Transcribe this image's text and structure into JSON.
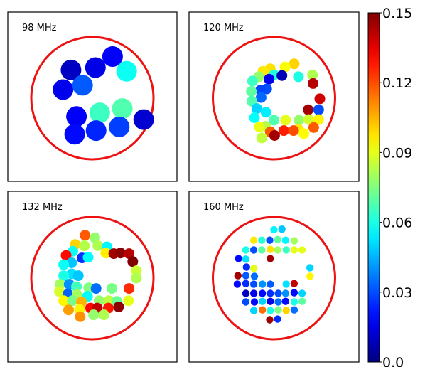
{
  "chart_data": {
    "type": "scatter",
    "colormap": "jet",
    "color_range": [
      0.0,
      0.15
    ],
    "colorbar_ticks": [
      "0.0",
      "0.03",
      "0.06",
      "0.09",
      "0.12",
      "0.15"
    ],
    "ring_color": "#ee1111",
    "panels": [
      {
        "label": "98 MHz",
        "marker": "large",
        "points": [
          {
            "x": -0.35,
            "y": 0.46,
            "v": 0.01
          },
          {
            "x": 0.05,
            "y": 0.5,
            "v": 0.015
          },
          {
            "x": 0.33,
            "y": 0.68,
            "v": 0.018
          },
          {
            "x": 0.56,
            "y": 0.44,
            "v": 0.058
          },
          {
            "x": -0.48,
            "y": 0.14,
            "v": 0.016
          },
          {
            "x": -0.16,
            "y": 0.21,
            "v": 0.032
          },
          {
            "x": -0.26,
            "y": -0.3,
            "v": 0.018
          },
          {
            "x": 0.12,
            "y": -0.24,
            "v": 0.065
          },
          {
            "x": 0.49,
            "y": -0.17,
            "v": 0.068
          },
          {
            "x": 0.84,
            "y": -0.35,
            "v": 0.012
          },
          {
            "x": -0.29,
            "y": -0.59,
            "v": 0.02
          },
          {
            "x": 0.06,
            "y": -0.53,
            "v": 0.024
          },
          {
            "x": 0.44,
            "y": -0.47,
            "v": 0.028
          }
        ]
      },
      {
        "label": "120 MHz",
        "marker": "medium",
        "points": [
          {
            "x": 0.33,
            "y": 0.56,
            "v": 0.1
          },
          {
            "x": 0.18,
            "y": 0.51,
            "v": 0.093
          },
          {
            "x": -0.06,
            "y": 0.48,
            "v": 0.098
          },
          {
            "x": -0.18,
            "y": 0.44,
            "v": 0.097
          },
          {
            "x": 0.0,
            "y": 0.38,
            "v": 0.061
          },
          {
            "x": -0.25,
            "y": 0.35,
            "v": 0.078
          },
          {
            "x": -0.08,
            "y": 0.31,
            "v": 0.016
          },
          {
            "x": 0.13,
            "y": 0.37,
            "v": 0.008
          },
          {
            "x": -0.35,
            "y": 0.28,
            "v": 0.065
          },
          {
            "x": 0.4,
            "y": 0.35,
            "v": 0.06
          },
          {
            "x": 0.63,
            "y": 0.38,
            "v": 0.082
          },
          {
            "x": 0.64,
            "y": 0.24,
            "v": 0.142
          },
          {
            "x": -0.12,
            "y": 0.15,
            "v": 0.03
          },
          {
            "x": -0.22,
            "y": 0.13,
            "v": 0.029
          },
          {
            "x": -0.37,
            "y": 0.11,
            "v": 0.07
          },
          {
            "x": -0.21,
            "y": 0.01,
            "v": 0.034
          },
          {
            "x": -0.36,
            "y": -0.05,
            "v": 0.068
          },
          {
            "x": 0.75,
            "y": -0.01,
            "v": 0.138
          },
          {
            "x": -0.28,
            "y": -0.17,
            "v": 0.05
          },
          {
            "x": -0.13,
            "y": -0.23,
            "v": 0.054
          },
          {
            "x": 0.56,
            "y": -0.19,
            "v": 0.145
          },
          {
            "x": 0.73,
            "y": -0.19,
            "v": 0.03
          },
          {
            "x": -0.32,
            "y": -0.32,
            "v": 0.057
          },
          {
            "x": 0.0,
            "y": -0.36,
            "v": 0.068
          },
          {
            "x": 0.19,
            "y": -0.36,
            "v": 0.09
          },
          {
            "x": 0.41,
            "y": -0.36,
            "v": 0.078
          },
          {
            "x": 0.57,
            "y": -0.35,
            "v": 0.087
          },
          {
            "x": 0.73,
            "y": -0.35,
            "v": 0.095
          },
          {
            "x": -0.14,
            "y": -0.46,
            "v": 0.083
          },
          {
            "x": -0.24,
            "y": -0.47,
            "v": 0.091
          },
          {
            "x": -0.06,
            "y": -0.55,
            "v": 0.118
          },
          {
            "x": 0.65,
            "y": -0.48,
            "v": 0.118
          },
          {
            "x": 0.4,
            "y": -0.51,
            "v": 0.097
          },
          {
            "x": 0.16,
            "y": -0.53,
            "v": 0.127
          },
          {
            "x": 0.32,
            "y": -0.53,
            "v": 0.12
          },
          {
            "x": 0.01,
            "y": -0.61,
            "v": 0.145
          },
          {
            "x": -0.2,
            "y": -0.65,
            "v": 0.085
          },
          {
            "x": 0.49,
            "y": -0.58,
            "v": 0.094
          }
        ]
      },
      {
        "label": "132 MHz",
        "marker": "medium",
        "points": [
          {
            "x": -0.12,
            "y": 0.7,
            "v": 0.118
          },
          {
            "x": 0.04,
            "y": 0.66,
            "v": 0.078
          },
          {
            "x": -0.28,
            "y": 0.55,
            "v": 0.1
          },
          {
            "x": -0.13,
            "y": 0.53,
            "v": 0.083
          },
          {
            "x": 0.09,
            "y": 0.53,
            "v": 0.082
          },
          {
            "x": 0.24,
            "y": 0.51,
            "v": 0.055
          },
          {
            "x": -0.32,
            "y": 0.44,
            "v": 0.058
          },
          {
            "x": 0.22,
            "y": 0.41,
            "v": 0.096
          },
          {
            "x": 0.35,
            "y": 0.4,
            "v": 0.145
          },
          {
            "x": 0.46,
            "y": 0.41,
            "v": 0.148
          },
          {
            "x": 0.6,
            "y": 0.4,
            "v": 0.142
          },
          {
            "x": -0.43,
            "y": 0.37,
            "v": 0.13
          },
          {
            "x": -0.17,
            "y": 0.33,
            "v": 0.026
          },
          {
            "x": -0.07,
            "y": 0.34,
            "v": 0.056
          },
          {
            "x": 0.66,
            "y": 0.27,
            "v": 0.15
          },
          {
            "x": -0.34,
            "y": 0.25,
            "v": 0.048
          },
          {
            "x": -0.47,
            "y": 0.22,
            "v": 0.058
          },
          {
            "x": 0.72,
            "y": 0.12,
            "v": 0.086
          },
          {
            "x": -0.34,
            "y": 0.07,
            "v": 0.052
          },
          {
            "x": -0.47,
            "y": 0.04,
            "v": 0.06
          },
          {
            "x": -0.23,
            "y": 0.04,
            "v": 0.048
          },
          {
            "x": 0.72,
            "y": 0.0,
            "v": 0.082
          },
          {
            "x": -0.53,
            "y": -0.1,
            "v": 0.08
          },
          {
            "x": -0.38,
            "y": -0.1,
            "v": 0.04
          },
          {
            "x": -0.26,
            "y": -0.14,
            "v": 0.066
          },
          {
            "x": -0.06,
            "y": -0.16,
            "v": 0.075
          },
          {
            "x": 0.06,
            "y": -0.17,
            "v": 0.035
          },
          {
            "x": 0.32,
            "y": -0.17,
            "v": 0.074
          },
          {
            "x": 0.6,
            "y": -0.17,
            "v": 0.125
          },
          {
            "x": -0.54,
            "y": -0.22,
            "v": 0.088
          },
          {
            "x": -0.4,
            "y": -0.26,
            "v": 0.033
          },
          {
            "x": -0.25,
            "y": -0.27,
            "v": 0.08
          },
          {
            "x": -0.08,
            "y": -0.3,
            "v": 0.056
          },
          {
            "x": -0.47,
            "y": -0.37,
            "v": 0.095
          },
          {
            "x": -0.33,
            "y": -0.37,
            "v": 0.074
          },
          {
            "x": -0.18,
            "y": -0.39,
            "v": 0.105
          },
          {
            "x": 0.11,
            "y": -0.37,
            "v": 0.078
          },
          {
            "x": 0.27,
            "y": -0.37,
            "v": 0.084
          },
          {
            "x": 0.4,
            "y": -0.38,
            "v": 0.072
          },
          {
            "x": 0.59,
            "y": -0.37,
            "v": 0.09
          },
          {
            "x": -0.03,
            "y": -0.49,
            "v": 0.13
          },
          {
            "x": 0.08,
            "y": -0.49,
            "v": 0.14
          },
          {
            "x": 0.26,
            "y": -0.49,
            "v": 0.128
          },
          {
            "x": 0.43,
            "y": -0.47,
            "v": 0.148
          },
          {
            "x": -0.39,
            "y": -0.52,
            "v": 0.108
          },
          {
            "x": -0.21,
            "y": -0.51,
            "v": 0.095
          },
          {
            "x": 0.02,
            "y": -0.6,
            "v": 0.078
          },
          {
            "x": 0.19,
            "y": -0.6,
            "v": 0.082
          },
          {
            "x": -0.2,
            "y": -0.63,
            "v": 0.11
          }
        ]
      },
      {
        "label": "160 MHz",
        "marker": "small",
        "points": [
          {
            "x": 0.0,
            "y": 0.79,
            "v": 0.055
          },
          {
            "x": 0.13,
            "y": 0.8,
            "v": 0.048
          },
          {
            "x": -0.33,
            "y": 0.62,
            "v": 0.097
          },
          {
            "x": -0.2,
            "y": 0.62,
            "v": 0.062
          },
          {
            "x": -0.07,
            "y": 0.62,
            "v": 0.03
          },
          {
            "x": 0.06,
            "y": 0.63,
            "v": 0.07
          },
          {
            "x": 0.19,
            "y": 0.62,
            "v": 0.055
          },
          {
            "x": 0.33,
            "y": 0.61,
            "v": 0.08
          },
          {
            "x": -0.46,
            "y": 0.46,
            "v": 0.06
          },
          {
            "x": -0.33,
            "y": 0.46,
            "v": 0.03
          },
          {
            "x": -0.2,
            "y": 0.46,
            "v": 0.07
          },
          {
            "x": -0.06,
            "y": 0.47,
            "v": 0.098
          },
          {
            "x": 0.06,
            "y": 0.46,
            "v": 0.08
          },
          {
            "x": 0.2,
            "y": 0.46,
            "v": 0.065
          },
          {
            "x": 0.33,
            "y": 0.46,
            "v": 0.09
          },
          {
            "x": 0.46,
            "y": 0.46,
            "v": 0.09
          },
          {
            "x": -0.58,
            "y": 0.32,
            "v": 0.02
          },
          {
            "x": -0.46,
            "y": 0.31,
            "v": 0.052
          },
          {
            "x": -0.06,
            "y": 0.32,
            "v": 0.145
          },
          {
            "x": 0.59,
            "y": 0.17,
            "v": 0.05
          },
          {
            "x": -0.45,
            "y": 0.18,
            "v": 0.025
          },
          {
            "x": -0.33,
            "y": 0.16,
            "v": 0.09
          },
          {
            "x": -0.59,
            "y": 0.04,
            "v": 0.145
          },
          {
            "x": -0.46,
            "y": 0.04,
            "v": 0.032
          },
          {
            "x": -0.32,
            "y": 0.03,
            "v": 0.035
          },
          {
            "x": 0.59,
            "y": 0.03,
            "v": 0.095
          },
          {
            "x": -0.6,
            "y": -0.1,
            "v": 0.02
          },
          {
            "x": -0.46,
            "y": -0.09,
            "v": 0.025
          },
          {
            "x": -0.33,
            "y": -0.1,
            "v": 0.03
          },
          {
            "x": -0.19,
            "y": -0.1,
            "v": 0.04
          },
          {
            "x": -0.06,
            "y": -0.1,
            "v": 0.032
          },
          {
            "x": 0.2,
            "y": -0.1,
            "v": 0.052
          },
          {
            "x": 0.33,
            "y": -0.09,
            "v": 0.14
          },
          {
            "x": -0.46,
            "y": -0.25,
            "v": 0.01
          },
          {
            "x": -0.33,
            "y": -0.25,
            "v": 0.015
          },
          {
            "x": -0.19,
            "y": -0.25,
            "v": 0.02
          },
          {
            "x": -0.06,
            "y": -0.25,
            "v": 0.025
          },
          {
            "x": 0.07,
            "y": -0.25,
            "v": 0.03
          },
          {
            "x": 0.19,
            "y": -0.25,
            "v": 0.04
          },
          {
            "x": 0.33,
            "y": -0.24,
            "v": 0.02
          },
          {
            "x": 0.46,
            "y": -0.25,
            "v": 0.05
          },
          {
            "x": -0.46,
            "y": -0.39,
            "v": 0.03
          },
          {
            "x": -0.32,
            "y": -0.39,
            "v": 0.02
          },
          {
            "x": -0.19,
            "y": -0.38,
            "v": 0.05
          },
          {
            "x": -0.06,
            "y": -0.38,
            "v": 0.015
          },
          {
            "x": 0.07,
            "y": -0.39,
            "v": 0.035
          },
          {
            "x": 0.19,
            "y": -0.38,
            "v": 0.02
          },
          {
            "x": 0.33,
            "y": -0.39,
            "v": 0.06
          },
          {
            "x": 0.46,
            "y": -0.38,
            "v": 0.07
          },
          {
            "x": -0.33,
            "y": -0.53,
            "v": 0.05
          },
          {
            "x": -0.19,
            "y": -0.52,
            "v": 0.115
          },
          {
            "x": -0.06,
            "y": -0.53,
            "v": 0.06
          },
          {
            "x": 0.07,
            "y": -0.52,
            "v": 0.075
          },
          {
            "x": 0.2,
            "y": -0.53,
            "v": 0.1
          },
          {
            "x": 0.33,
            "y": -0.52,
            "v": 0.035
          },
          {
            "x": -0.07,
            "y": -0.68,
            "v": 0.145
          },
          {
            "x": 0.06,
            "y": -0.67,
            "v": 0.025
          }
        ]
      }
    ]
  }
}
